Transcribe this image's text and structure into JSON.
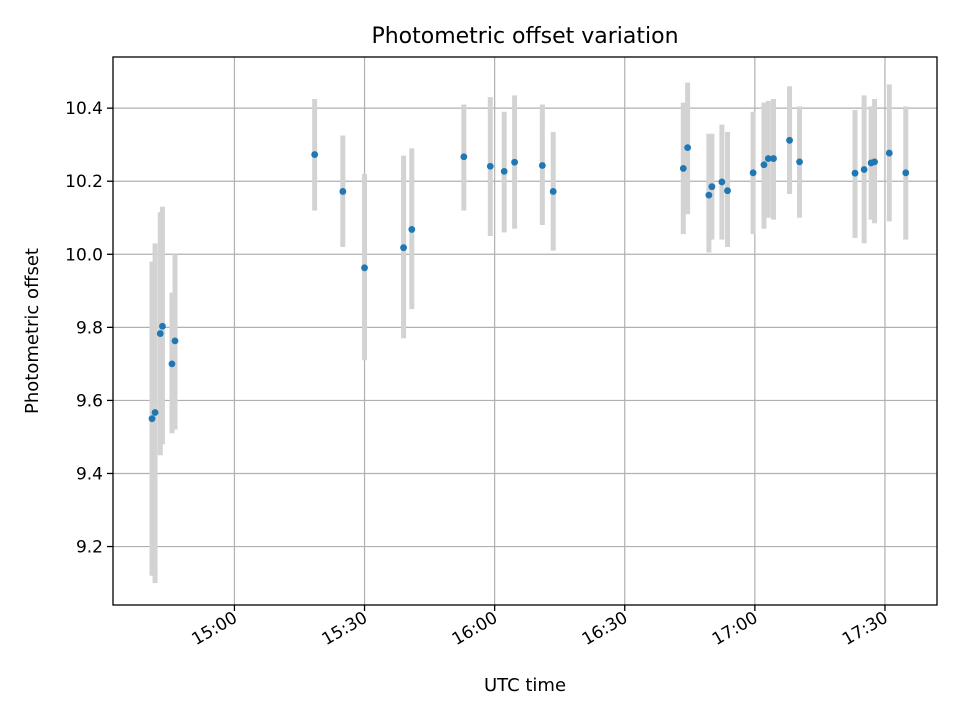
{
  "chart_data": {
    "type": "scatter",
    "title": "Photometric offset variation",
    "xlabel": "UTC time",
    "ylabel": "Photometric offset",
    "xlim": [
      "14:32",
      "17:42"
    ],
    "ylim": [
      9.04,
      10.54
    ],
    "x_ticks": [
      "15:00",
      "15:30",
      "16:00",
      "16:30",
      "17:00",
      "17:30"
    ],
    "y_ticks": [
      9.2,
      9.4,
      9.6,
      9.8,
      10.0,
      10.2,
      10.4
    ],
    "grid": true,
    "colors": {
      "points": "#1f77b4",
      "error_bars": "#d3d3d3"
    },
    "points": [
      {
        "x": "14:41.0",
        "y": 9.55,
        "err_low": 9.12,
        "err_high": 9.98
      },
      {
        "x": "14:41.7",
        "y": 9.567,
        "err_low": 9.1,
        "err_high": 10.03
      },
      {
        "x": "14:42.9",
        "y": 9.783,
        "err_low": 9.45,
        "err_high": 10.115
      },
      {
        "x": "14:43.4",
        "y": 9.803,
        "err_low": 9.48,
        "err_high": 10.13
      },
      {
        "x": "14:45.6",
        "y": 9.7,
        "err_low": 9.51,
        "err_high": 9.895
      },
      {
        "x": "14:46.3",
        "y": 9.763,
        "err_low": 9.52,
        "err_high": 10.0
      },
      {
        "x": "15:18.5",
        "y": 10.273,
        "err_low": 10.12,
        "err_high": 10.425
      },
      {
        "x": "15:25.0",
        "y": 10.172,
        "err_low": 10.02,
        "err_high": 10.325
      },
      {
        "x": "15:30.0",
        "y": 9.963,
        "err_low": 9.71,
        "err_high": 10.22
      },
      {
        "x": "15:39.0",
        "y": 10.018,
        "err_low": 9.77,
        "err_high": 10.27
      },
      {
        "x": "15:40.9",
        "y": 10.068,
        "err_low": 9.85,
        "err_high": 10.29
      },
      {
        "x": "15:52.9",
        "y": 10.267,
        "err_low": 10.12,
        "err_high": 10.41
      },
      {
        "x": "15:59.0",
        "y": 10.241,
        "err_low": 10.05,
        "err_high": 10.43
      },
      {
        "x": "16:02.2",
        "y": 10.227,
        "err_low": 10.06,
        "err_high": 10.39
      },
      {
        "x": "16:04.6",
        "y": 10.252,
        "err_low": 10.07,
        "err_high": 10.435
      },
      {
        "x": "16:11.0",
        "y": 10.243,
        "err_low": 10.08,
        "err_high": 10.41
      },
      {
        "x": "16:13.5",
        "y": 10.172,
        "err_low": 10.01,
        "err_high": 10.335
      },
      {
        "x": "16:43.5",
        "y": 10.235,
        "err_low": 10.055,
        "err_high": 10.415
      },
      {
        "x": "16:44.5",
        "y": 10.292,
        "err_low": 10.11,
        "err_high": 10.47
      },
      {
        "x": "16:49.4",
        "y": 10.162,
        "err_low": 10.005,
        "err_high": 10.33
      },
      {
        "x": "16:50.1",
        "y": 10.185,
        "err_low": 10.04,
        "err_high": 10.33
      },
      {
        "x": "16:52.4",
        "y": 10.198,
        "err_low": 10.04,
        "err_high": 10.355
      },
      {
        "x": "16:53.7",
        "y": 10.174,
        "err_low": 10.02,
        "err_high": 10.335
      },
      {
        "x": "16:59.6",
        "y": 10.223,
        "err_low": 10.055,
        "err_high": 10.39
      },
      {
        "x": "17:02.1",
        "y": 10.245,
        "err_low": 10.07,
        "err_high": 10.415
      },
      {
        "x": "17:03.1",
        "y": 10.262,
        "err_low": 10.1,
        "err_high": 10.42
      },
      {
        "x": "17:04.3",
        "y": 10.262,
        "err_low": 10.095,
        "err_high": 10.425
      },
      {
        "x": "17:08.0",
        "y": 10.312,
        "err_low": 10.165,
        "err_high": 10.46
      },
      {
        "x": "17:10.3",
        "y": 10.253,
        "err_low": 10.1,
        "err_high": 10.405
      },
      {
        "x": "17:23.1",
        "y": 10.222,
        "err_low": 10.045,
        "err_high": 10.395
      },
      {
        "x": "17:25.2",
        "y": 10.232,
        "err_low": 10.03,
        "err_high": 10.435
      },
      {
        "x": "17:26.8",
        "y": 10.25,
        "err_low": 10.095,
        "err_high": 10.405
      },
      {
        "x": "17:27.6",
        "y": 10.253,
        "err_low": 10.085,
        "err_high": 10.425
      },
      {
        "x": "17:31.0",
        "y": 10.277,
        "err_low": 10.09,
        "err_high": 10.465
      },
      {
        "x": "17:34.8",
        "y": 10.223,
        "err_low": 10.04,
        "err_high": 10.405
      }
    ]
  }
}
